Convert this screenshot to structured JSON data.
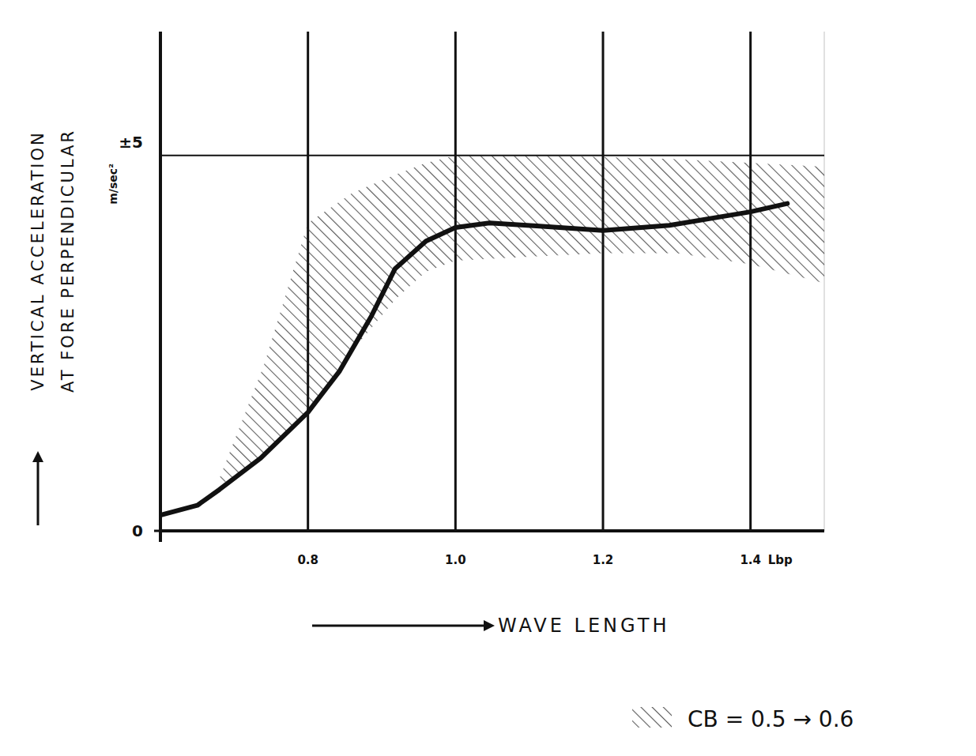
{
  "chart_data": {
    "type": "line",
    "y_label": [
      "VERTICAL ACCELERATION",
      "AT FORE PERPENDICULAR"
    ],
    "y_unit": "m/sec²",
    "x_label": "WAVE LENGTH",
    "x_unit": "Lbp",
    "xlim": [
      0.6,
      1.5
    ],
    "xticks": [
      0.8,
      {
        "value": 1.0,
        "label": "1.0"
      },
      1.2,
      1.4
    ],
    "ylim": [
      0,
      6.65
    ],
    "yticks": [
      0,
      {
        "value": 5,
        "label": "±5"
      }
    ],
    "grid": true,
    "legend": "bottom right",
    "series": [
      {
        "type": "line",
        "color": "#111111",
        "x": [
          0.6,
          0.65,
          0.68,
          0.736,
          0.8,
          0.843,
          0.886,
          0.918,
          0.96,
          1.0,
          1.046,
          1.11,
          1.2,
          1.29,
          1.4,
          1.45
        ],
        "values": [
          0.21,
          0.34,
          0.55,
          0.97,
          1.58,
          2.13,
          2.86,
          3.49,
          3.86,
          4.04,
          4.1,
          4.06,
          4.0,
          4.07,
          4.25,
          4.36
        ]
      },
      {
        "type": "area",
        "name": "CB = 0.5 → 0.6",
        "color": "#222222",
        "x": [
          0.68,
          0.74,
          0.8,
          0.86,
          0.92,
          0.96,
          1.0,
          1.1,
          1.2,
          1.3,
          1.4,
          1.5
        ],
        "lower": [
          0.6,
          1.0,
          1.6,
          2.4,
          3.1,
          3.45,
          3.6,
          3.65,
          3.7,
          3.7,
          3.55,
          3.3
        ],
        "upper": [
          0.7,
          2.2,
          4.1,
          4.5,
          4.75,
          4.9,
          5.0,
          5.0,
          4.98,
          4.95,
          4.9,
          4.85
        ]
      }
    ]
  }
}
